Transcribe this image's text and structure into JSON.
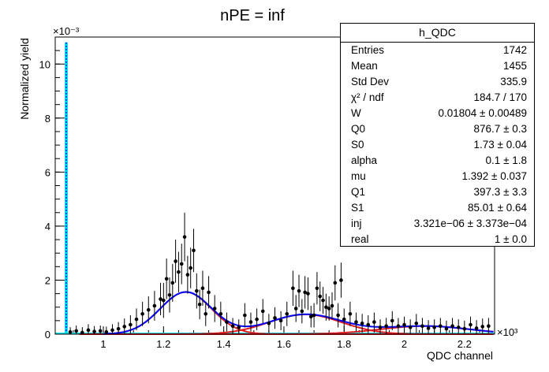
{
  "title": "nPE = inf",
  "chart_data": {
    "type": "scatter",
    "title": "nPE = inf",
    "xlabel": "QDC channel",
    "ylabel": "Normalized yield",
    "x_multiplier": "×10³",
    "y_multiplier": "×10⁻³",
    "xlim": [
      0.84,
      2.3
    ],
    "ylim": [
      0,
      11
    ],
    "x_ticks": [
      {
        "v": 1,
        "label": "1"
      },
      {
        "v": 1.2,
        "label": "1.2"
      },
      {
        "v": 1.4,
        "label": "1.4"
      },
      {
        "v": 1.6,
        "label": "1.6"
      },
      {
        "v": 1.8,
        "label": "1.8"
      },
      {
        "v": 2,
        "label": "2"
      },
      {
        "v": 2.2,
        "label": "2.2"
      }
    ],
    "y_ticks": [
      {
        "v": 0,
        "label": "0"
      },
      {
        "v": 2,
        "label": "2"
      },
      {
        "v": 4,
        "label": "4"
      },
      {
        "v": 6,
        "label": "6"
      },
      {
        "v": 8,
        "label": "8"
      },
      {
        "v": 10,
        "label": "10"
      }
    ],
    "pedestal": {
      "x": 0.8767,
      "y": 10.8,
      "width": 0.00173
    },
    "gauss_components": [
      {
        "mu": 1.2741,
        "sigma": 0.085,
        "amp": 1.56
      },
      {
        "mu": 1.6714,
        "sigma": 0.1202,
        "amp": 0.73
      },
      {
        "mu": 2.0687,
        "sigma": 0.1472,
        "amp": 0.3
      }
    ],
    "data_points": {
      "x": [
        0.89,
        0.91,
        0.93,
        0.95,
        0.97,
        0.99,
        1.01,
        1.03,
        1.05,
        1.07,
        1.09,
        1.11,
        1.13,
        1.15,
        1.17,
        1.19,
        1.2,
        1.21,
        1.22,
        1.23,
        1.24,
        1.25,
        1.26,
        1.27,
        1.28,
        1.29,
        1.3,
        1.31,
        1.32,
        1.33,
        1.34,
        1.35,
        1.37,
        1.39,
        1.41,
        1.43,
        1.45,
        1.47,
        1.49,
        1.51,
        1.53,
        1.55,
        1.57,
        1.59,
        1.61,
        1.63,
        1.64,
        1.65,
        1.66,
        1.67,
        1.68,
        1.69,
        1.7,
        1.71,
        1.72,
        1.73,
        1.74,
        1.75,
        1.76,
        1.77,
        1.78,
        1.79,
        1.8,
        1.82,
        1.84,
        1.86,
        1.88,
        1.9,
        1.92,
        1.94,
        1.96,
        1.98,
        2.0,
        2.02,
        2.04,
        2.06,
        2.08,
        2.1,
        2.12,
        2.14,
        2.16,
        2.18,
        2.2,
        2.22,
        2.24,
        2.26,
        2.28
      ],
      "y": [
        0.08,
        0.12,
        0.06,
        0.15,
        0.1,
        0.12,
        0.08,
        0.15,
        0.2,
        0.28,
        0.35,
        0.55,
        0.75,
        0.9,
        1.05,
        1.3,
        1.25,
        2.05,
        1.45,
        1.9,
        2.7,
        2.3,
        2.6,
        3.6,
        2.2,
        2.45,
        3.1,
        1.6,
        1.1,
        1.7,
        0.75,
        1.55,
        0.95,
        0.75,
        0.45,
        0.3,
        0.25,
        0.7,
        0.45,
        0.55,
        0.85,
        0.4,
        0.6,
        0.5,
        0.75,
        1.7,
        0.95,
        1.6,
        0.85,
        1.55,
        1.5,
        0.65,
        0.7,
        1.7,
        1.4,
        1.25,
        1.0,
        0.95,
        1.05,
        1.9,
        0.7,
        2.0,
        0.55,
        0.75,
        0.45,
        0.4,
        0.35,
        0.45,
        0.25,
        0.3,
        0.5,
        0.3,
        0.35,
        0.25,
        0.4,
        0.3,
        0.22,
        0.25,
        0.3,
        0.2,
        0.3,
        0.25,
        0.2,
        0.35,
        0.22,
        0.28,
        0.3
      ],
      "err": [
        0.18,
        0.2,
        0.2,
        0.22,
        0.2,
        0.2,
        0.2,
        0.22,
        0.25,
        0.3,
        0.35,
        0.4,
        0.45,
        0.5,
        0.55,
        0.6,
        0.65,
        0.75,
        0.65,
        0.7,
        0.8,
        0.75,
        0.75,
        0.9,
        0.7,
        0.75,
        0.8,
        0.65,
        0.55,
        0.65,
        0.45,
        0.6,
        0.5,
        0.45,
        0.35,
        0.3,
        0.3,
        0.45,
        0.35,
        0.4,
        0.45,
        0.35,
        0.4,
        0.35,
        0.45,
        0.65,
        0.5,
        0.6,
        0.45,
        0.6,
        0.6,
        0.4,
        0.45,
        0.6,
        0.55,
        0.5,
        0.5,
        0.45,
        0.5,
        0.65,
        0.45,
        0.65,
        0.4,
        0.45,
        0.35,
        0.35,
        0.35,
        0.35,
        0.3,
        0.3,
        0.35,
        0.3,
        0.3,
        0.3,
        0.35,
        0.3,
        0.3,
        0.3,
        0.3,
        0.3,
        0.3,
        0.3,
        0.3,
        0.3,
        0.3,
        0.3,
        0.3
      ]
    },
    "colors": {
      "data": "#000000",
      "total_fit": "#0000ff",
      "components": "#e41a1c",
      "pedestal": "#00e5ee"
    }
  },
  "stats": {
    "title": "h_QDC",
    "rows": [
      {
        "label": "Entries",
        "value": "1742"
      },
      {
        "label": "Mean",
        "value": "1455"
      },
      {
        "label": "Std Dev",
        "value": "335.9"
      },
      {
        "label": "χ² / ndf",
        "value": "184.7 / 170"
      },
      {
        "label": "W",
        "value": "0.01804 ± 0.00489"
      },
      {
        "label": "Q0",
        "value": "876.7 ± 0.3"
      },
      {
        "label": "S0",
        "value": "1.73 ± 0.04"
      },
      {
        "label": "alpha",
        "value": "0.1 ± 1.8"
      },
      {
        "label": "mu",
        "value": "1.392 ± 0.037"
      },
      {
        "label": "Q1",
        "value": "397.3 ± 3.3"
      },
      {
        "label": "S1",
        "value": "85.01 ± 0.64"
      },
      {
        "label": "inj",
        "value": "3.321e−06 ± 3.373e−04"
      },
      {
        "label": "real",
        "value": "1 ± 0.0"
      }
    ]
  }
}
